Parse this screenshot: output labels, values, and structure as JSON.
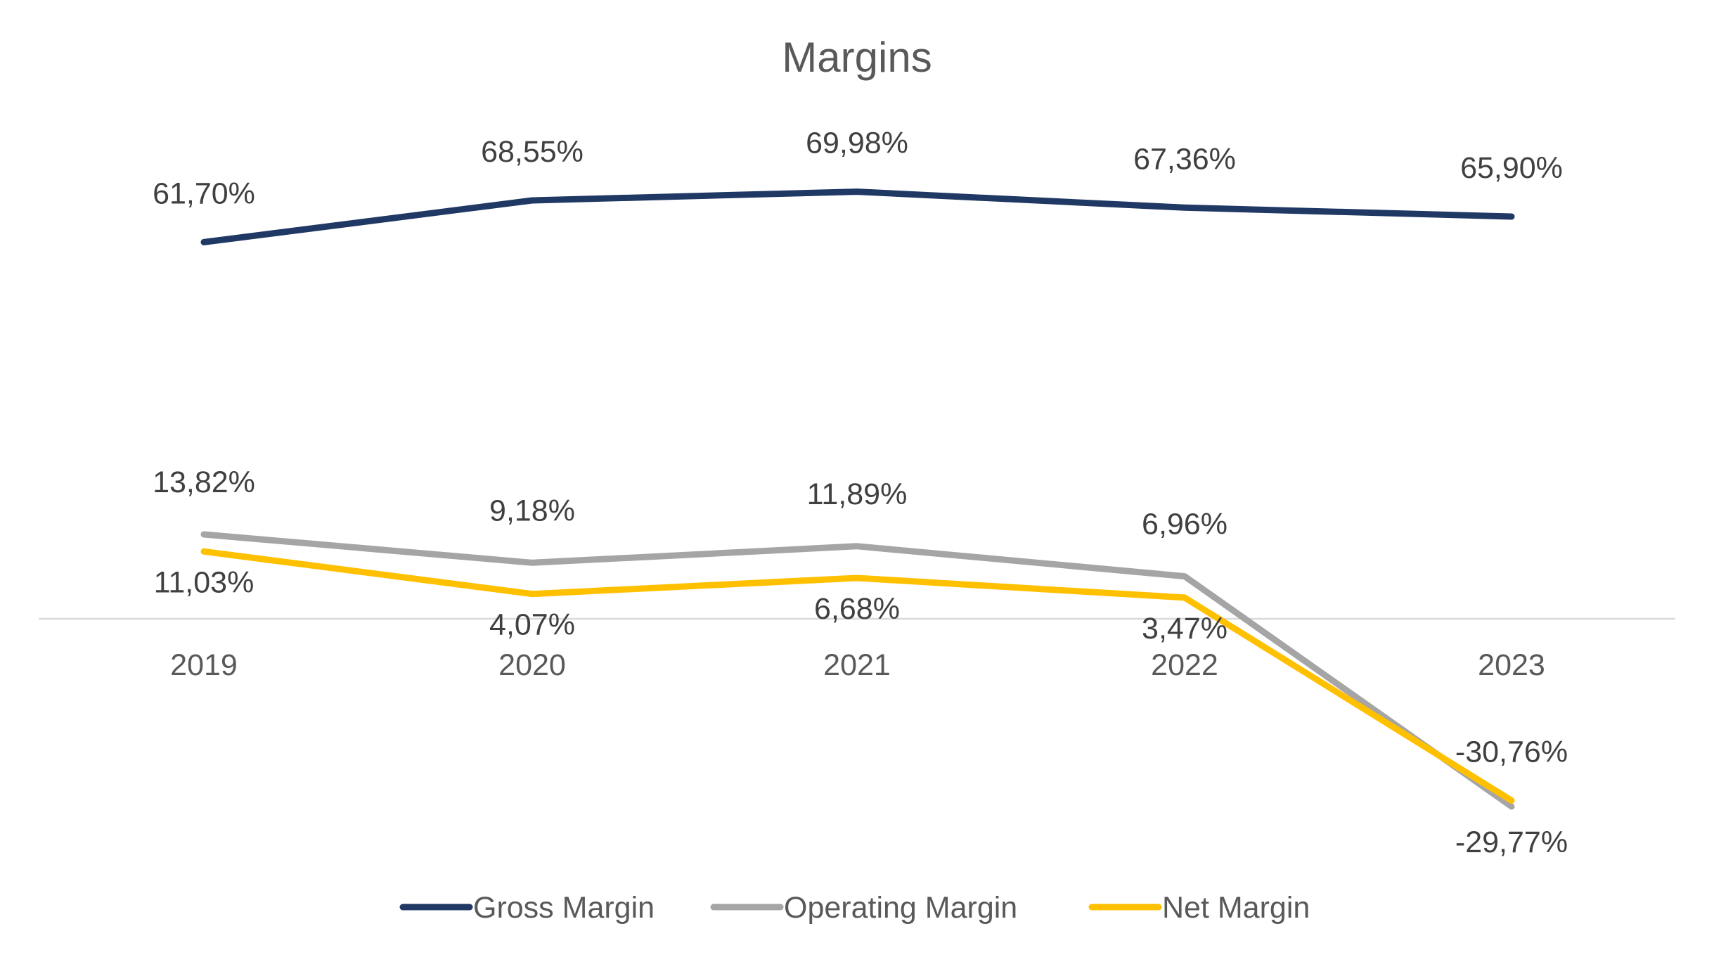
{
  "chart_data": {
    "type": "line",
    "title": "Margins",
    "xlabel": "",
    "ylabel": "",
    "categories": [
      "2019",
      "2020",
      "2021",
      "2022",
      "2023"
    ],
    "ylim": [
      -50,
      80
    ],
    "grid": false,
    "legend_position": "bottom",
    "series": [
      {
        "name": "Gross Margin",
        "color": "#203864",
        "values": [
          61.7,
          68.55,
          69.98,
          67.36,
          65.9
        ],
        "labels": [
          "61,70%",
          "68,55%",
          "69,98%",
          "67,36%",
          "65,90%"
        ]
      },
      {
        "name": "Operating Margin",
        "color": "#A5A5A5",
        "values": [
          13.82,
          9.18,
          11.89,
          6.96,
          -30.76
        ],
        "labels": [
          "13,82%",
          "9,18%",
          "11,89%",
          "6,96%",
          "-30,76%"
        ]
      },
      {
        "name": "Net Margin",
        "color": "#FFC000",
        "values": [
          11.03,
          4.07,
          6.68,
          3.47,
          -29.77
        ],
        "labels": [
          "11,03%",
          "4,07%",
          "6,68%",
          "3,47%",
          "-29,77%"
        ]
      }
    ]
  }
}
